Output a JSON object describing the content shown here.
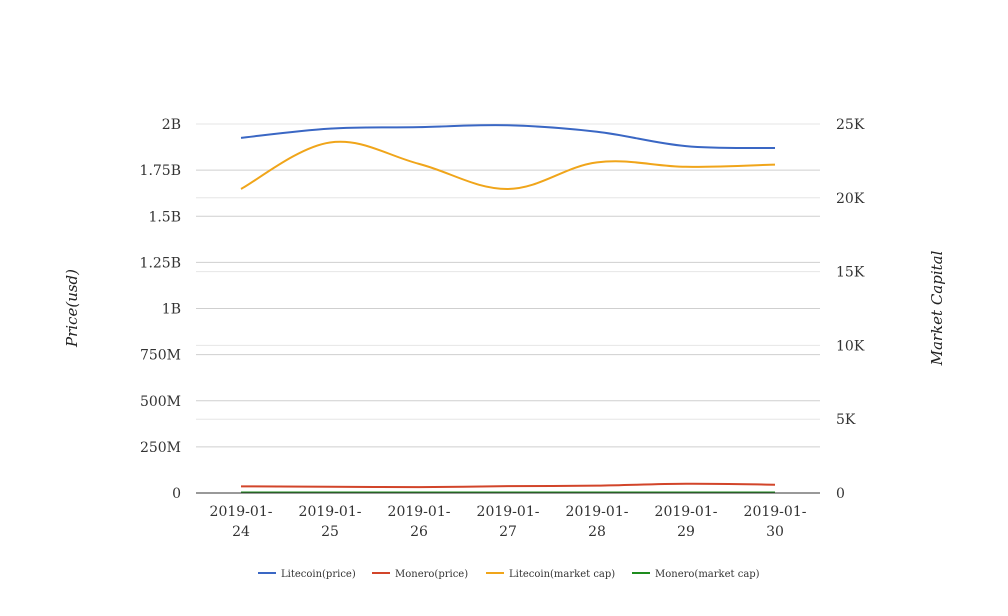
{
  "chart_data": {
    "type": "line",
    "categories": [
      "2019-01-24",
      "2019-01-25",
      "2019-01-26",
      "2019-01-27",
      "2019-01-28",
      "2019-01-29",
      "2019-01-30"
    ],
    "category_labels": [
      [
        "2019-01-",
        "24"
      ],
      [
        "2019-01-",
        "25"
      ],
      [
        "2019-01-",
        "26"
      ],
      [
        "2019-01-",
        "27"
      ],
      [
        "2019-01-",
        "28"
      ],
      [
        "2019-01-",
        "29"
      ],
      [
        "2019-01-",
        "30"
      ]
    ],
    "ylabel_left": "Price(usd)",
    "ylabel_right": "Market Capital",
    "ylim_left": [
      0,
      2000000000
    ],
    "ylim_right": [
      0,
      25000
    ],
    "left_ticks": [
      {
        "value": 0,
        "label": "0"
      },
      {
        "value": 250000000,
        "label": "250M"
      },
      {
        "value": 500000000,
        "label": "500M"
      },
      {
        "value": 750000000,
        "label": "750M"
      },
      {
        "value": 1000000000,
        "label": "1B"
      },
      {
        "value": 1250000000,
        "label": "1.25B"
      },
      {
        "value": 1500000000,
        "label": "1.5B"
      },
      {
        "value": 1750000000,
        "label": "1.75B"
      },
      {
        "value": 2000000000,
        "label": "2B"
      }
    ],
    "right_ticks": [
      {
        "value": 0,
        "label": "0"
      },
      {
        "value": 5000,
        "label": "5K"
      },
      {
        "value": 10000,
        "label": "10K"
      },
      {
        "value": 15000,
        "label": "15K"
      },
      {
        "value": 20000,
        "label": "20K"
      },
      {
        "value": 25000,
        "label": "25K"
      }
    ],
    "grid": true,
    "legend_position": "bottom",
    "series": [
      {
        "name": "Litecoin(price)",
        "axis": "left",
        "color": "#3a67c4",
        "values": [
          1925000000,
          1975000000,
          1983000000,
          1993000000,
          1958000000,
          1880000000,
          1870000000
        ]
      },
      {
        "name": "Monero(price)",
        "axis": "left",
        "color": "#d2452a",
        "values": [
          36000000,
          34000000,
          32000000,
          37000000,
          40000000,
          50000000,
          45000000
        ]
      },
      {
        "name": "Litecoin(market cap)",
        "axis": "right",
        "color": "#f0a51a",
        "values": [
          20600,
          23750,
          22300,
          20600,
          22400,
          22100,
          22250
        ]
      },
      {
        "name": "Monero(market cap)",
        "axis": "right",
        "color": "#1e8c1e",
        "values": [
          30,
          30,
          30,
          30,
          30,
          30,
          30
        ]
      }
    ]
  }
}
